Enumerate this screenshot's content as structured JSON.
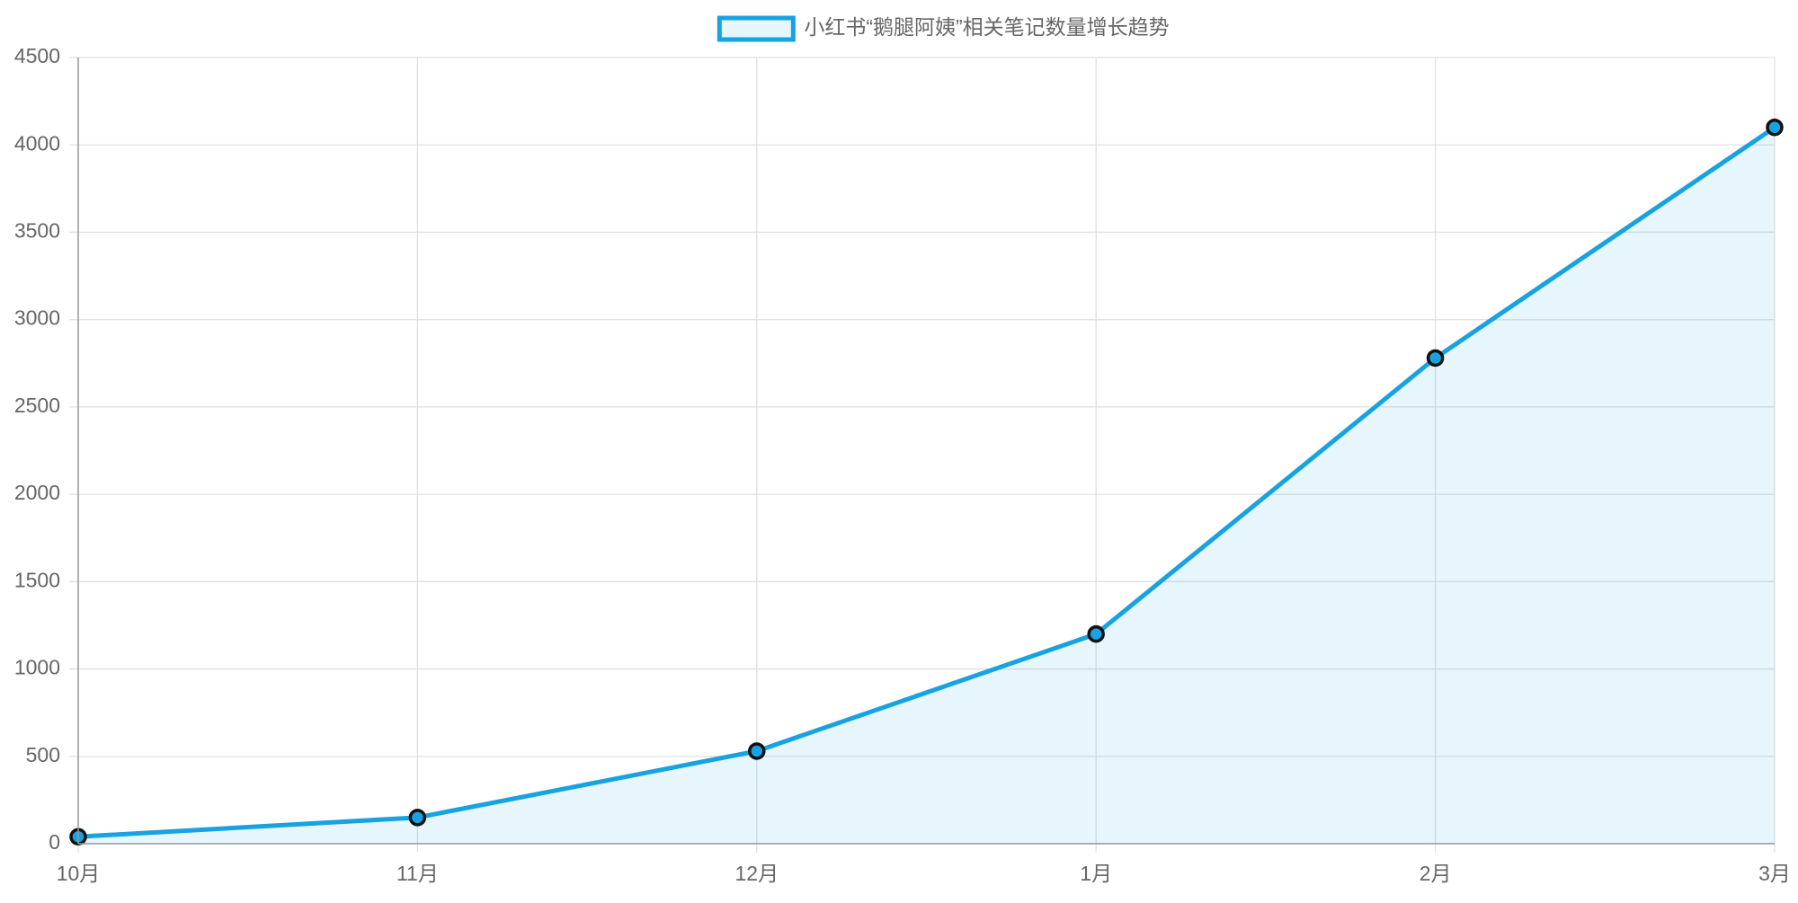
{
  "chart_data": {
    "type": "line",
    "area": true,
    "categories": [
      "10月",
      "11月",
      "12月",
      "1月",
      "2月",
      "3月"
    ],
    "series": [
      {
        "name": "小红书“鹅腿阿姨”相关笔记数量增长趋势",
        "color": "#17a2e2",
        "values": [
          40,
          150,
          530,
          1200,
          2780,
          4100
        ]
      }
    ],
    "ylim": [
      0,
      4500
    ],
    "yticks": [
      0,
      500,
      1000,
      1500,
      2000,
      2500,
      3000,
      3500,
      4000,
      4500
    ],
    "grid": true,
    "legend": "top"
  }
}
